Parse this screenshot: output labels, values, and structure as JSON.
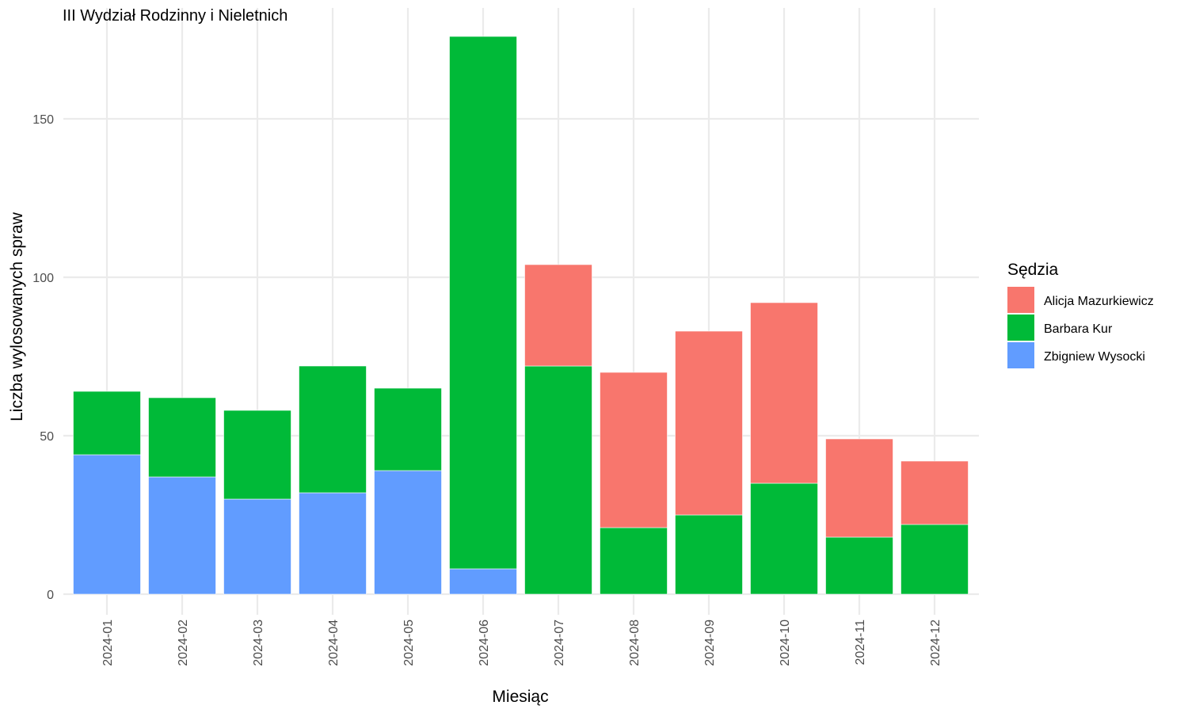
{
  "chart_data": {
    "type": "bar",
    "stacked": true,
    "title": "III Wydział Rodzinny i Nieletnich",
    "xlabel": "Miesiąc",
    "ylabel": "Liczba wylosowanych spraw",
    "ylim": [
      0,
      176
    ],
    "yticks": [
      0,
      50,
      100,
      150
    ],
    "grid": true,
    "legend": {
      "title": "Sędzia",
      "position": "right"
    },
    "categories": [
      "2024-01",
      "2024-02",
      "2024-03",
      "2024-04",
      "2024-05",
      "2024-06",
      "2024-07",
      "2024-08",
      "2024-09",
      "2024-10",
      "2024-11",
      "2024-12"
    ],
    "series": [
      {
        "name": "Alicja Mazurkiewicz",
        "color": "#F8766D",
        "values": [
          0,
          0,
          0,
          0,
          0,
          0,
          32,
          49,
          58,
          57,
          31,
          20
        ]
      },
      {
        "name": "Barbara Kur",
        "color": "#00BA38",
        "values": [
          20,
          25,
          28,
          40,
          26,
          168,
          72,
          21,
          25,
          35,
          18,
          22
        ]
      },
      {
        "name": "Zbigniew Wysocki",
        "color": "#619CFF",
        "values": [
          44,
          37,
          30,
          32,
          39,
          8,
          0,
          0,
          0,
          0,
          0,
          0
        ]
      }
    ]
  }
}
